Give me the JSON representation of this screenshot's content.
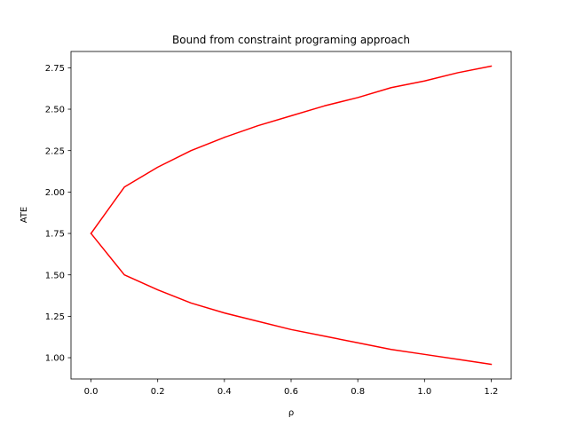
{
  "chart_data": {
    "type": "line",
    "title": "Bound from constraint programing approach",
    "xlabel": "ρ",
    "ylabel": "ATE",
    "xlim": [
      -0.06,
      1.26
    ],
    "ylim": [
      0.8717,
      2.8483
    ],
    "xticks": [
      0.0,
      0.2,
      0.4,
      0.6,
      0.8,
      1.0,
      1.2
    ],
    "xtick_labels": [
      "0.0",
      "0.2",
      "0.4",
      "0.6",
      "0.8",
      "1.0",
      "1.2"
    ],
    "yticks": [
      1.0,
      1.25,
      1.5,
      1.75,
      2.0,
      2.25,
      2.5,
      2.75
    ],
    "ytick_labels": [
      "1.00",
      "1.25",
      "1.50",
      "1.75",
      "2.00",
      "2.25",
      "2.50",
      "2.75"
    ],
    "grid": false,
    "legend": null,
    "x": [
      0.0,
      0.1,
      0.2,
      0.3,
      0.4,
      0.5,
      0.6,
      0.7,
      0.8,
      0.9,
      1.0,
      1.1,
      1.2
    ],
    "series": [
      {
        "color": "#ff0000",
        "values": [
          1.75,
          2.03,
          2.15,
          2.25,
          2.33,
          2.4,
          2.46,
          2.52,
          2.57,
          2.63,
          2.67,
          2.72,
          2.76
        ]
      },
      {
        "color": "#ff0000",
        "values": [
          1.75,
          1.5,
          1.41,
          1.33,
          1.27,
          1.22,
          1.17,
          1.13,
          1.09,
          1.05,
          1.02,
          0.99,
          0.96
        ]
      }
    ]
  }
}
